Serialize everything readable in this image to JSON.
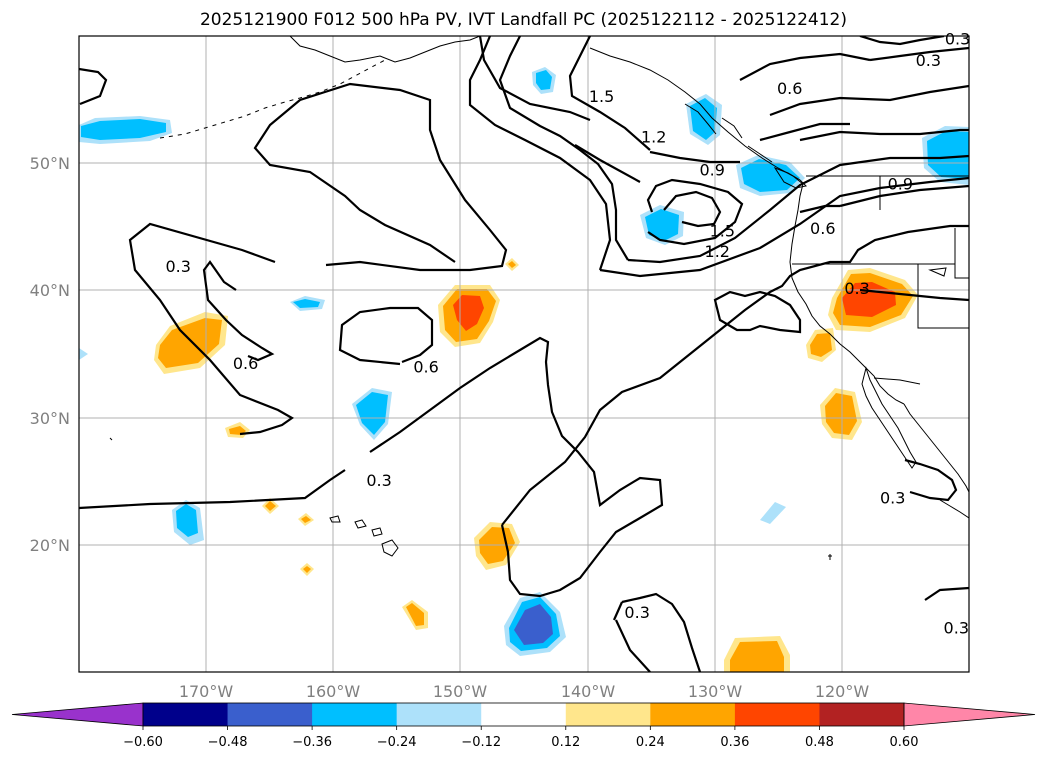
{
  "title": "2025121900 F012 500 hPa PV, IVT Landfall PC (2025122112 - 2025122412)",
  "chart_data": {
    "type": "map",
    "projection": "plate-carree",
    "extent": {
      "lon": [
        -180,
        -110
      ],
      "lat": [
        10,
        60
      ]
    },
    "gridlines": true,
    "lat_ticks": [
      {
        "value": 20,
        "label": "20°N"
      },
      {
        "value": 30,
        "label": "30°N"
      },
      {
        "value": 40,
        "label": "40°N"
      },
      {
        "value": 50,
        "label": "50°N"
      }
    ],
    "lon_ticks": [
      {
        "value": -170,
        "label": "170°W"
      },
      {
        "value": -160,
        "label": "160°W"
      },
      {
        "value": -150,
        "label": "150°W"
      },
      {
        "value": -140,
        "label": "140°W"
      },
      {
        "value": -130,
        "label": "130°W"
      },
      {
        "value": -120,
        "label": "120°W"
      }
    ],
    "colorbar": {
      "extend": "both",
      "levels": [
        -0.6,
        -0.48,
        -0.36,
        -0.24,
        -0.12,
        0.12,
        0.24,
        0.36,
        0.48,
        0.6
      ],
      "tick_labels": [
        "−0.60",
        "−0.48",
        "−0.36",
        "−0.24",
        "−0.12",
        "0.12",
        "0.24",
        "0.36",
        "0.48",
        "0.60"
      ],
      "colors": [
        "#9932CC",
        "#00008B",
        "#3A5FCD",
        "#00BFFF",
        "#ADE1FA",
        "#FFFFFF",
        "#FFE68C",
        "#FFA500",
        "#FF4500",
        "#B22222",
        "#FF86A8"
      ]
    },
    "contour_labels": [
      {
        "text": "0.3",
        "lon": -172.2,
        "lat": 41.9
      },
      {
        "text": "0.6",
        "lon": -166.9,
        "lat": 34.3
      },
      {
        "text": "0.6",
        "lon": -152.7,
        "lat": 34.0
      },
      {
        "text": "0.3",
        "lon": -156.4,
        "lat": 25.1
      },
      {
        "text": "1.5",
        "lon": -138.9,
        "lat": 55.3
      },
      {
        "text": "1.2",
        "lon": -134.8,
        "lat": 52.1
      },
      {
        "text": "0.9",
        "lon": -130.2,
        "lat": 49.5
      },
      {
        "text": "1.5",
        "lon": -129.4,
        "lat": 44.7
      },
      {
        "text": "1.2",
        "lon": -129.8,
        "lat": 43.1
      },
      {
        "text": "0.6",
        "lon": -124.1,
        "lat": 55.9
      },
      {
        "text": "0.3",
        "lon": -113.2,
        "lat": 58.1
      },
      {
        "text": "0.3",
        "lon": -110.9,
        "lat": 59.8
      },
      {
        "text": "0.6",
        "lon": -121.5,
        "lat": 44.9
      },
      {
        "text": "0.9",
        "lon": -115.4,
        "lat": 48.4
      },
      {
        "text": "0.3",
        "lon": -118.8,
        "lat": 40.2
      },
      {
        "text": "0.3",
        "lon": -116.0,
        "lat": 23.7
      },
      {
        "text": "0.3",
        "lon": -111.0,
        "lat": 13.5
      },
      {
        "text": "0.3",
        "lon": -136.1,
        "lat": 14.7
      }
    ]
  }
}
